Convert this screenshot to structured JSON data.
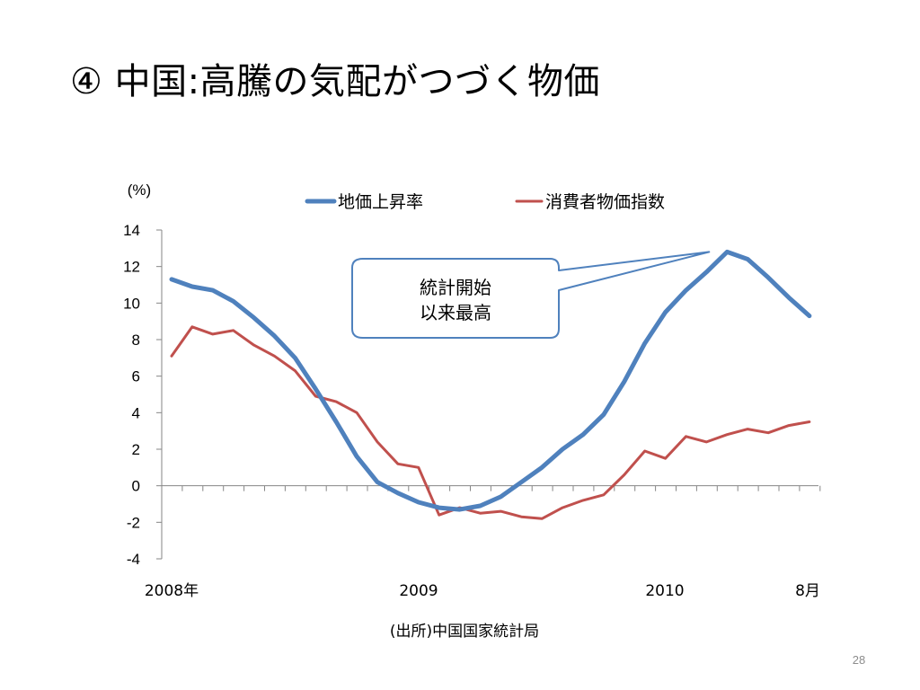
{
  "slide": {
    "title": "④ 中国:高騰の気配がつづく物価",
    "page_number": "28",
    "source": "(出所)中国国家統計局"
  },
  "chart_data": {
    "type": "line",
    "unit_label": "(%)",
    "x_tick_labels": [
      "2008年",
      "2009",
      "2010",
      "8月"
    ],
    "ylim": [
      -4,
      14
    ],
    "y_ticks": [
      "14",
      "12",
      "10",
      "8",
      "6",
      "4",
      "2",
      "0",
      "-2",
      "-4"
    ],
    "grid": false,
    "legend_position": "top",
    "x": [
      "2008-01",
      "2008-02",
      "2008-03",
      "2008-04",
      "2008-05",
      "2008-06",
      "2008-07",
      "2008-08",
      "2008-09",
      "2008-10",
      "2008-11",
      "2008-12",
      "2009-01",
      "2009-02",
      "2009-03",
      "2009-04",
      "2009-05",
      "2009-06",
      "2009-07",
      "2009-08",
      "2009-09",
      "2009-10",
      "2009-11",
      "2009-12",
      "2010-01",
      "2010-02",
      "2010-03",
      "2010-04",
      "2010-05",
      "2010-06",
      "2010-07",
      "2010-08"
    ],
    "series": [
      {
        "name": "地価上昇率",
        "color": "#4f81bd",
        "values": [
          11.3,
          10.9,
          10.7,
          10.1,
          9.2,
          8.2,
          7.0,
          5.3,
          3.5,
          1.6,
          0.2,
          -0.4,
          -0.9,
          -1.2,
          -1.3,
          -1.1,
          -0.6,
          0.2,
          1.0,
          2.0,
          2.8,
          3.9,
          5.7,
          7.8,
          9.5,
          10.7,
          11.7,
          12.8,
          12.4,
          11.4,
          10.3,
          9.3
        ]
      },
      {
        "name": "消費者物価指数",
        "color": "#c0504d",
        "values": [
          7.1,
          8.7,
          8.3,
          8.5,
          7.7,
          7.1,
          6.3,
          4.9,
          4.6,
          4.0,
          2.4,
          1.2,
          1.0,
          -1.6,
          -1.2,
          -1.5,
          -1.4,
          -1.7,
          -1.8,
          -1.2,
          -0.8,
          -0.5,
          0.6,
          1.9,
          1.5,
          2.7,
          2.4,
          2.8,
          3.1,
          2.9,
          3.3,
          3.5
        ]
      }
    ],
    "annotation": {
      "lines": [
        "統計開始",
        "以来最高"
      ]
    }
  }
}
